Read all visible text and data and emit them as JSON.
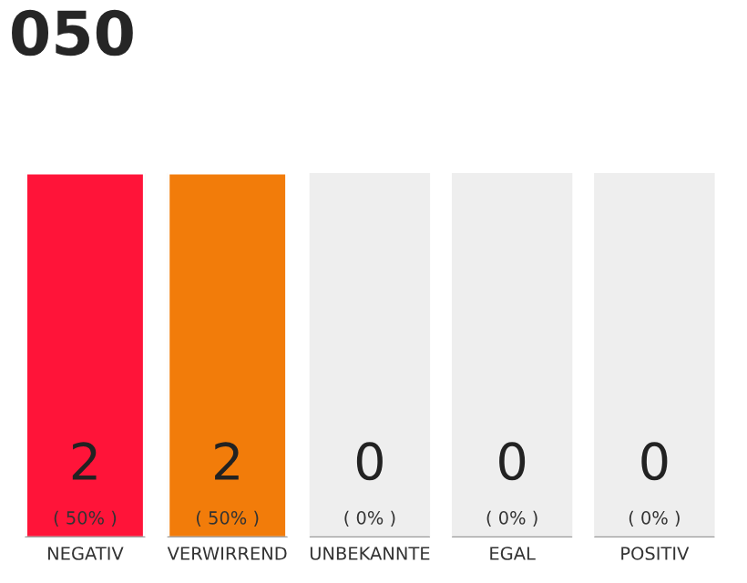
{
  "chart_data": {
    "type": "bar",
    "title": "050",
    "categories": [
      "NEGATIV",
      "VERWIRREND",
      "UNBEKANNTE",
      "EGAL",
      "POSITIV"
    ],
    "values": [
      2,
      2,
      0,
      0,
      0
    ],
    "colors": [
      "#ff1439",
      "#f27c0a",
      null,
      null,
      null
    ],
    "ylim": [
      0,
      2
    ],
    "grid": false,
    "legend": false,
    "value_labels": [
      "2\n( 50% )",
      "2\n( 50% )",
      "0\n( 0% )",
      "0\n( 0% )",
      "0\n( 0% )"
    ]
  }
}
